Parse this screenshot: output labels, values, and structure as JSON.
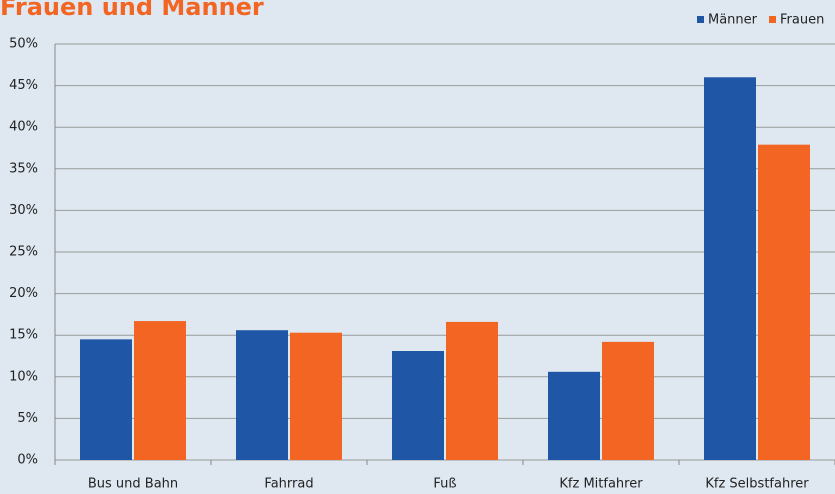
{
  "chart_data": {
    "type": "bar",
    "title": "Frauen und Männer",
    "categories": [
      "Bus und Bahn",
      "Fahrrad",
      "Fuß",
      "Kfz Mitfahrer",
      "Kfz Selbstfahrer"
    ],
    "series": [
      {
        "name": "Männer",
        "color": "#1f56a6",
        "values": [
          14.5,
          15.6,
          13.1,
          10.6,
          46.0
        ]
      },
      {
        "name": "Frauen",
        "color": "#f26522",
        "values": [
          16.7,
          15.3,
          16.6,
          14.2,
          37.9
        ]
      }
    ],
    "ylim": [
      0,
      50
    ],
    "yticks": [
      {
        "value": 0,
        "label": "0%"
      },
      {
        "value": 5,
        "label": "5%"
      },
      {
        "value": 10,
        "label": "10%"
      },
      {
        "value": 15,
        "label": "15%"
      },
      {
        "value": 20,
        "label": "20%"
      },
      {
        "value": 25,
        "label": "25%"
      },
      {
        "value": 30,
        "label": "30%"
      },
      {
        "value": 35,
        "label": "35%"
      },
      {
        "value": 40,
        "label": "40%"
      },
      {
        "value": 45,
        "label": "45%"
      },
      {
        "value": 50,
        "label": "50%"
      }
    ],
    "grid": true,
    "legend": "top-right"
  }
}
